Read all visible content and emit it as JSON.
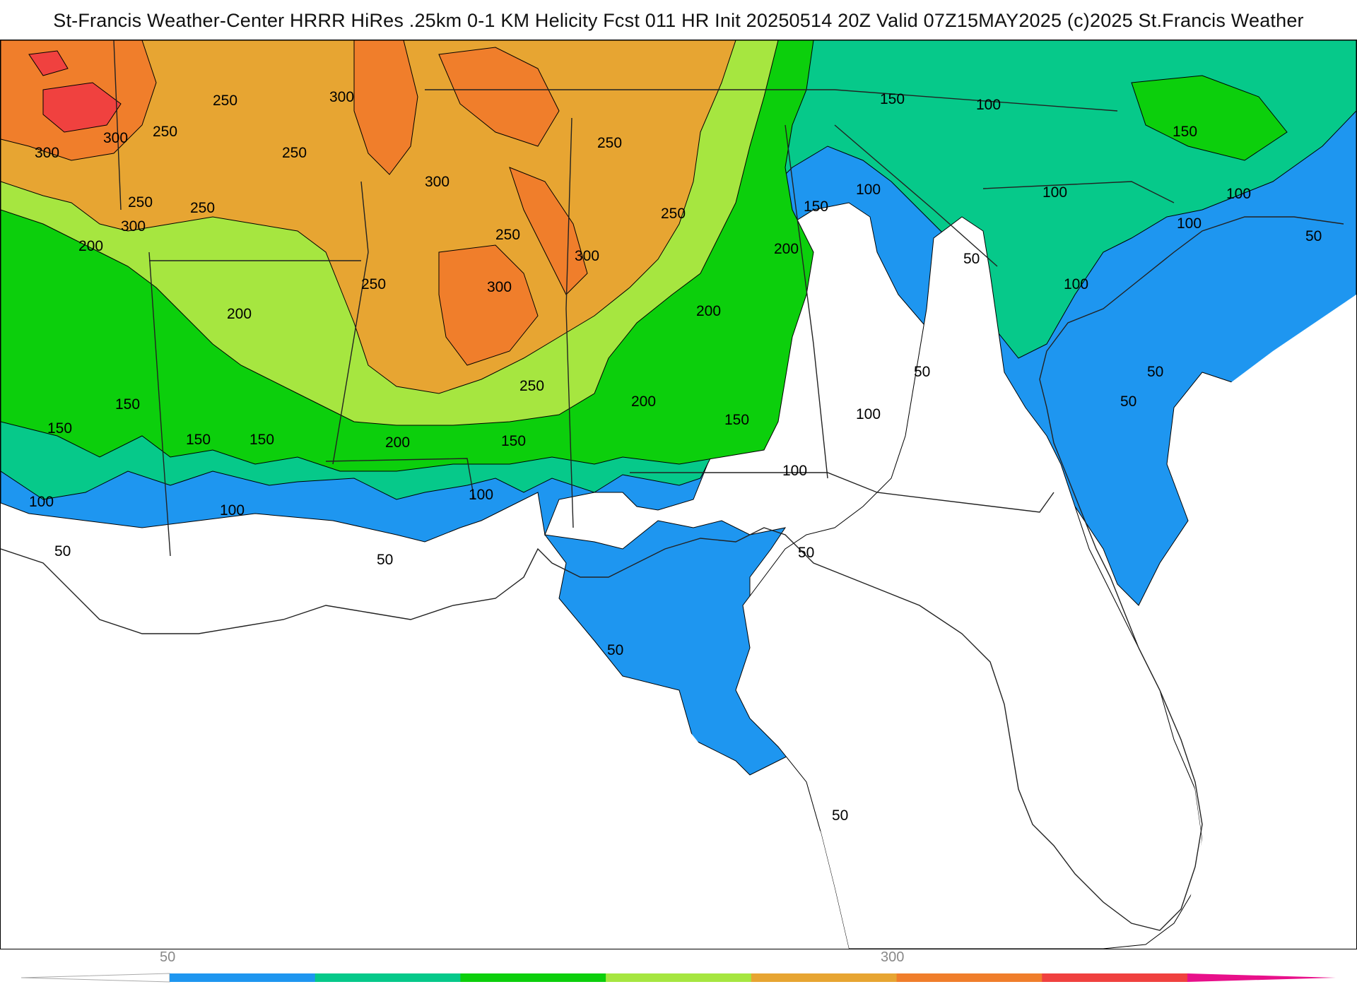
{
  "title": "St-Francis Weather-Center HRRR HiRes .25km 0-1 KM Helicity Fcst 011 HR Init 20250514 20Z  Valid 07Z15MAY2025    (c)2025 St.Francis Weather",
  "legend": {
    "tick_labels": [
      "50",
      "300"
    ],
    "colors": [
      "#1e96f0",
      "#06c98a",
      "#0ccf0c",
      "#a6e640",
      "#e7a532",
      "#f07e2b",
      "#f0413f",
      "#e8108a"
    ]
  },
  "contour_labels": [
    "50",
    "100",
    "150",
    "200",
    "250",
    "300"
  ],
  "colors": {
    "level_0_50": "#ffffff",
    "level_50_100": "#1e96f0",
    "level_100_150": "#06c98a",
    "level_150_200": "#0ccf0c",
    "level_200_250": "#a6e640",
    "level_250_300": "#e7a532",
    "level_300_350": "#f07e2b",
    "level_350_400": "#f0413f"
  }
}
